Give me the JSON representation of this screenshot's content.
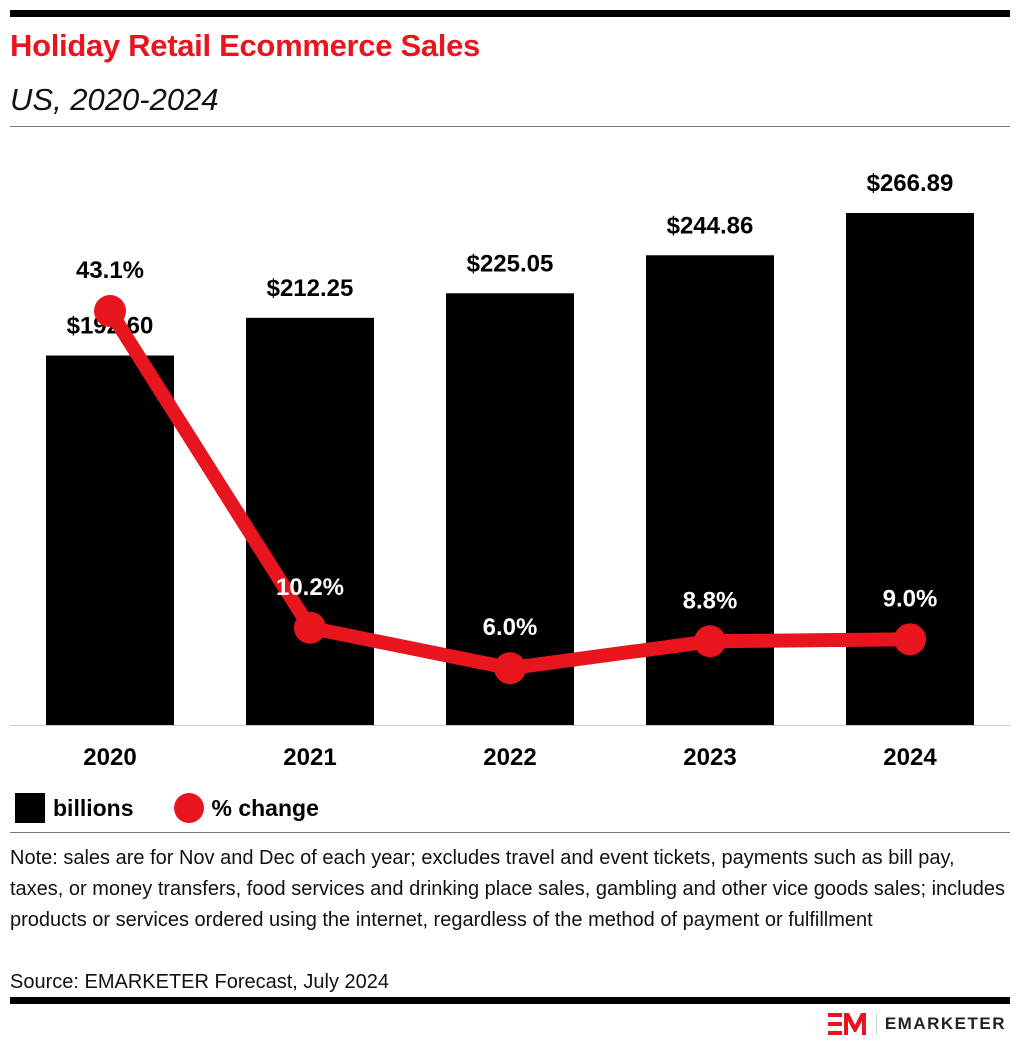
{
  "header": {
    "title": "Holiday Retail Ecommerce Sales",
    "subtitle": "US, 2020-2024"
  },
  "chart_data": {
    "type": "bar+line",
    "categories": [
      "2020",
      "2021",
      "2022",
      "2023",
      "2024"
    ],
    "series": [
      {
        "name": "billions",
        "type": "bar",
        "values": [
          192.6,
          212.25,
          225.05,
          244.86,
          266.89
        ],
        "labels": [
          "$192.60",
          "$212.25",
          "$225.05",
          "$244.86",
          "$266.89"
        ],
        "color": "#000000"
      },
      {
        "name": "% change",
        "type": "line",
        "values": [
          43.1,
          10.2,
          6.0,
          8.8,
          9.0
        ],
        "labels": [
          "43.1%",
          "10.2%",
          "6.0%",
          "8.8%",
          "9.0%"
        ],
        "color": "#e8151f"
      }
    ],
    "legend": "bottom-left",
    "grid": false
  },
  "legend": {
    "bar": "billions",
    "line": "% change"
  },
  "note": "Note: sales are for Nov and Dec of each year; excludes travel and event tickets, payments such as bill pay, taxes, or money transfers, food services and drinking place sales, gambling and other vice goods sales; includes products or services ordered using the internet, regardless of the method of payment or fulfillment",
  "source": "Source: EMARKETER Forecast, July 2024",
  "logo": {
    "text": "EMARKETER",
    "mark": "EM"
  },
  "colors": {
    "accent": "#e8151f",
    "bar": "#000000"
  }
}
